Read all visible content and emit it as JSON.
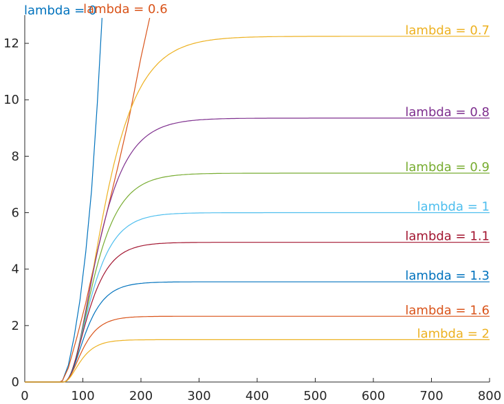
{
  "chart_data": {
    "type": "line",
    "title": "",
    "xlabel": "",
    "ylabel": "",
    "xlim": [
      0,
      800
    ],
    "ylim": [
      0,
      13
    ],
    "xticks": [
      0,
      100,
      200,
      300,
      400,
      500,
      600,
      700,
      800
    ],
    "yticks": [
      0,
      2,
      4,
      6,
      8,
      10,
      12
    ],
    "grid": false,
    "legend": "none",
    "series": [
      {
        "name": "lambda = 0",
        "color": "#0072BD",
        "plateau": null,
        "rate": 0.0,
        "points": [
          [
            0,
            0
          ],
          [
            60,
            0
          ],
          [
            65,
            0.05
          ],
          [
            75,
            0.6
          ],
          [
            85,
            1.6
          ],
          [
            95,
            2.9
          ],
          [
            105,
            4.6
          ],
          [
            115,
            6.8
          ],
          [
            125,
            9.9
          ],
          [
            133,
            12.9
          ]
        ]
      },
      {
        "name": "lambda = 0.6",
        "color": "#D95319",
        "plateau": null,
        "rate": 0.0,
        "points": [
          [
            0,
            0
          ],
          [
            60,
            0
          ],
          [
            65,
            0.05
          ],
          [
            75,
            0.5
          ],
          [
            90,
            1.6
          ],
          [
            105,
            2.8
          ],
          [
            120,
            4.2
          ],
          [
            140,
            5.9
          ],
          [
            160,
            7.6
          ],
          [
            180,
            9.4
          ],
          [
            200,
            11.5
          ],
          [
            215,
            12.9
          ]
        ]
      },
      {
        "name": "lambda = 0.7",
        "color": "#EDB120",
        "plateau": 12.25,
        "rate": 0.022,
        "points": []
      },
      {
        "name": "lambda = 0.8",
        "color": "#7E2F8E",
        "plateau": 9.35,
        "rate": 0.026,
        "points": []
      },
      {
        "name": "lambda = 0.9",
        "color": "#77AC30",
        "plateau": 7.4,
        "rate": 0.029,
        "points": []
      },
      {
        "name": "lambda = 1",
        "color": "#4DBEEE",
        "plateau": 6.0,
        "rate": 0.032,
        "points": []
      },
      {
        "name": "lambda = 1.1",
        "color": "#A2142F",
        "plateau": 4.95,
        "rate": 0.035,
        "points": []
      },
      {
        "name": "lambda = 1.3",
        "color": "#0072BD",
        "plateau": 3.55,
        "rate": 0.039,
        "points": []
      },
      {
        "name": "lambda = 1.6",
        "color": "#D95319",
        "plateau": 2.33,
        "rate": 0.045,
        "points": []
      },
      {
        "name": "lambda = 2",
        "color": "#EDB120",
        "plateau": 1.5,
        "rate": 0.05,
        "points": []
      }
    ],
    "curve_start_x": 65
  }
}
